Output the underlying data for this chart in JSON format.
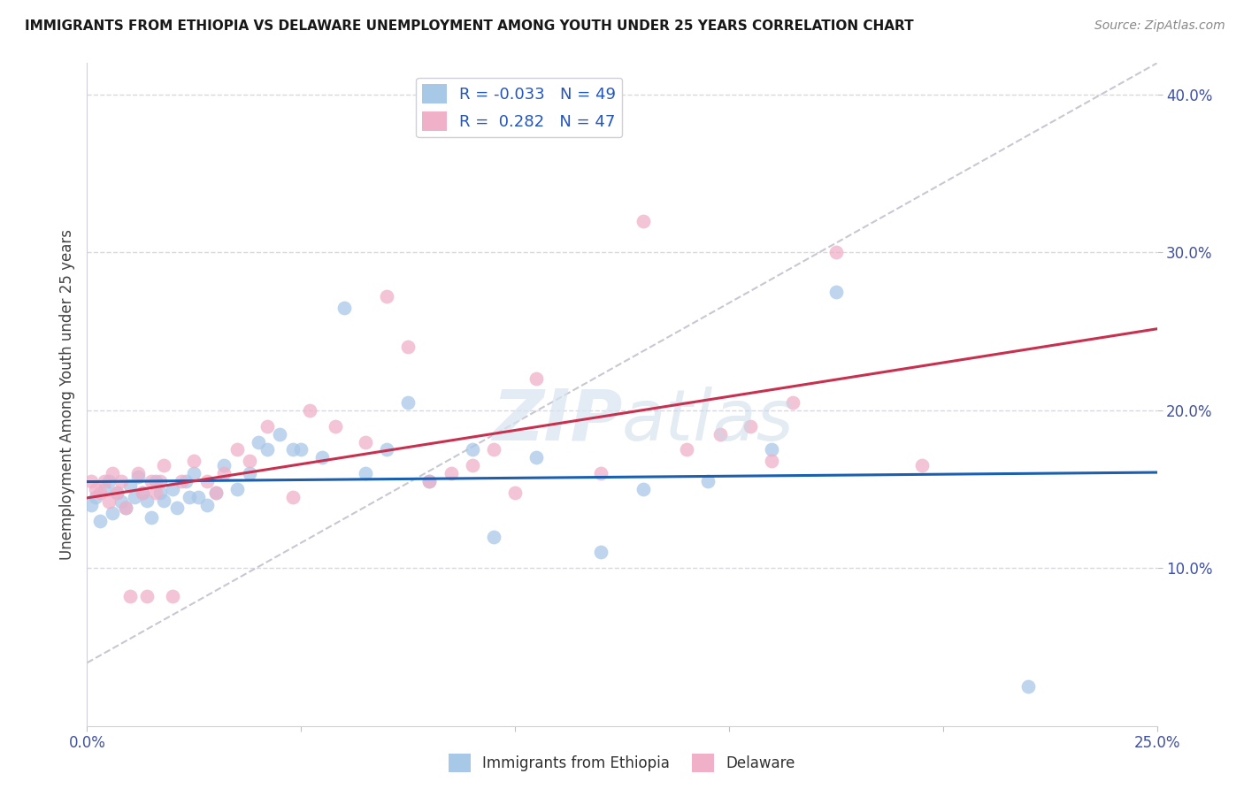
{
  "title": "IMMIGRANTS FROM ETHIOPIA VS DELAWARE UNEMPLOYMENT AMONG YOUTH UNDER 25 YEARS CORRELATION CHART",
  "source": "Source: ZipAtlas.com",
  "ylabel": "Unemployment Among Youth under 25 years",
  "legend_label1": "Immigrants from Ethiopia",
  "legend_label2": "Delaware",
  "r1": -0.033,
  "n1": 49,
  "r2": 0.282,
  "n2": 47,
  "color1": "#a8c8e8",
  "color2": "#f0b0c8",
  "line_color1": "#1a5fb0",
  "line_color2": "#c83050",
  "diag_color": "#c8c8d4",
  "background_color": "#ffffff",
  "grid_color": "#d8d8e0",
  "xlim": [
    0.0,
    0.25
  ],
  "ylim": [
    0.0,
    0.42
  ],
  "blue_x": [
    0.001,
    0.002,
    0.003,
    0.004,
    0.005,
    0.006,
    0.007,
    0.008,
    0.009,
    0.01,
    0.011,
    0.012,
    0.013,
    0.014,
    0.015,
    0.016,
    0.017,
    0.018,
    0.02,
    0.021,
    0.023,
    0.024,
    0.025,
    0.026,
    0.028,
    0.03,
    0.032,
    0.035,
    0.038,
    0.04,
    0.042,
    0.045,
    0.048,
    0.05,
    0.055,
    0.06,
    0.065,
    0.07,
    0.075,
    0.08,
    0.09,
    0.095,
    0.105,
    0.12,
    0.13,
    0.145,
    0.16,
    0.175,
    0.22
  ],
  "blue_y": [
    0.14,
    0.145,
    0.13,
    0.15,
    0.155,
    0.135,
    0.148,
    0.142,
    0.138,
    0.152,
    0.145,
    0.158,
    0.148,
    0.143,
    0.132,
    0.155,
    0.148,
    0.143,
    0.15,
    0.138,
    0.155,
    0.145,
    0.16,
    0.145,
    0.14,
    0.148,
    0.165,
    0.15,
    0.16,
    0.18,
    0.175,
    0.185,
    0.175,
    0.175,
    0.17,
    0.265,
    0.16,
    0.175,
    0.205,
    0.155,
    0.175,
    0.12,
    0.17,
    0.11,
    0.15,
    0.155,
    0.175,
    0.275,
    0.025
  ],
  "pink_x": [
    0.001,
    0.002,
    0.003,
    0.004,
    0.005,
    0.006,
    0.007,
    0.008,
    0.009,
    0.01,
    0.012,
    0.013,
    0.014,
    0.015,
    0.016,
    0.017,
    0.018,
    0.02,
    0.022,
    0.025,
    0.028,
    0.03,
    0.032,
    0.035,
    0.038,
    0.042,
    0.048,
    0.052,
    0.058,
    0.065,
    0.07,
    0.075,
    0.08,
    0.085,
    0.09,
    0.095,
    0.1,
    0.105,
    0.12,
    0.13,
    0.14,
    0.148,
    0.155,
    0.16,
    0.165,
    0.175,
    0.195
  ],
  "pink_y": [
    0.155,
    0.15,
    0.148,
    0.155,
    0.142,
    0.16,
    0.148,
    0.155,
    0.138,
    0.082,
    0.16,
    0.148,
    0.082,
    0.155,
    0.148,
    0.155,
    0.165,
    0.082,
    0.155,
    0.168,
    0.155,
    0.148,
    0.16,
    0.175,
    0.168,
    0.19,
    0.145,
    0.2,
    0.19,
    0.18,
    0.272,
    0.24,
    0.155,
    0.16,
    0.165,
    0.175,
    0.148,
    0.22,
    0.16,
    0.32,
    0.175,
    0.185,
    0.19,
    0.168,
    0.205,
    0.3,
    0.165
  ]
}
